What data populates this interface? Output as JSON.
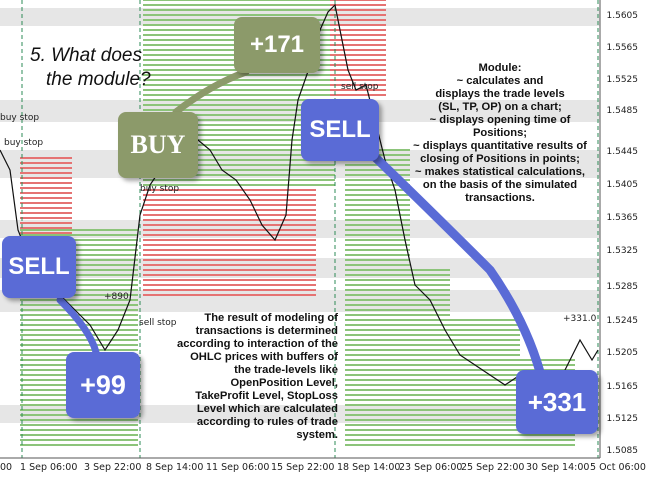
{
  "heading": {
    "line1": "5. What does",
    "line2": "the module?"
  },
  "module_info": {
    "title": "Module:",
    "lines": [
      "~ calculates and",
      "displays the trade levels",
      "(SL, TP, OP) on a chart;",
      "~ displays opening time of",
      "Positions;",
      "~ displays quantitative results of",
      "closing of Positions in points;",
      "~ makes statistical calculations,",
      "on the basis of the simulated",
      "transactions."
    ]
  },
  "modeling_info": {
    "lines": [
      "The result of modeling of",
      "transactions is determined",
      "according to interaction of the",
      "OHLC prices with buffers of",
      "the trade-levels like",
      "OpenPosition Level,",
      "TakeProfit Level, StopLoss",
      "Level which are calculated",
      "according to rules of trade",
      "system."
    ]
  },
  "callouts": {
    "sell_left": "SELL",
    "plus_99": "+99",
    "buy": "BUY",
    "plus_171": "+171",
    "sell_mid": "SELL",
    "plus_331": "+331"
  },
  "chart_labels": {
    "buy_stop_1": "buy stop",
    "buy_stop_2": "buy stop",
    "buy_stop_3": "buy stop",
    "sell_stop_1": "sell stop",
    "sell_stop_2": "sell stop",
    "result_890": "+890",
    "result_331": "+331.0"
  },
  "price_axis": [
    "1.5605",
    "1.5565",
    "1.5525",
    "1.5485",
    "1.5445",
    "1.5405",
    "1.5365",
    "1.5325",
    "1.5285",
    "1.5245",
    "1.5205",
    "1.5165",
    "1.5125",
    "1.5085"
  ],
  "time_axis": [
    "00",
    "1 Sep 06:00",
    "3 Sep 22:00",
    "8 Sep 14:00",
    "11 Sep 06:00",
    "15 Sep 22:00",
    "18 Sep 14:00",
    "23 Sep 06:00",
    "25 Sep 22:00",
    "30 Sep 14:00",
    "5 Oct 06:00"
  ],
  "colors": {
    "green_zone": "#8cc47a",
    "red_zone": "#e57373",
    "grey_band": "#e6e6e6",
    "callout_blue": "#5a6bd6",
    "callout_olive": "#8c9a6a"
  }
}
